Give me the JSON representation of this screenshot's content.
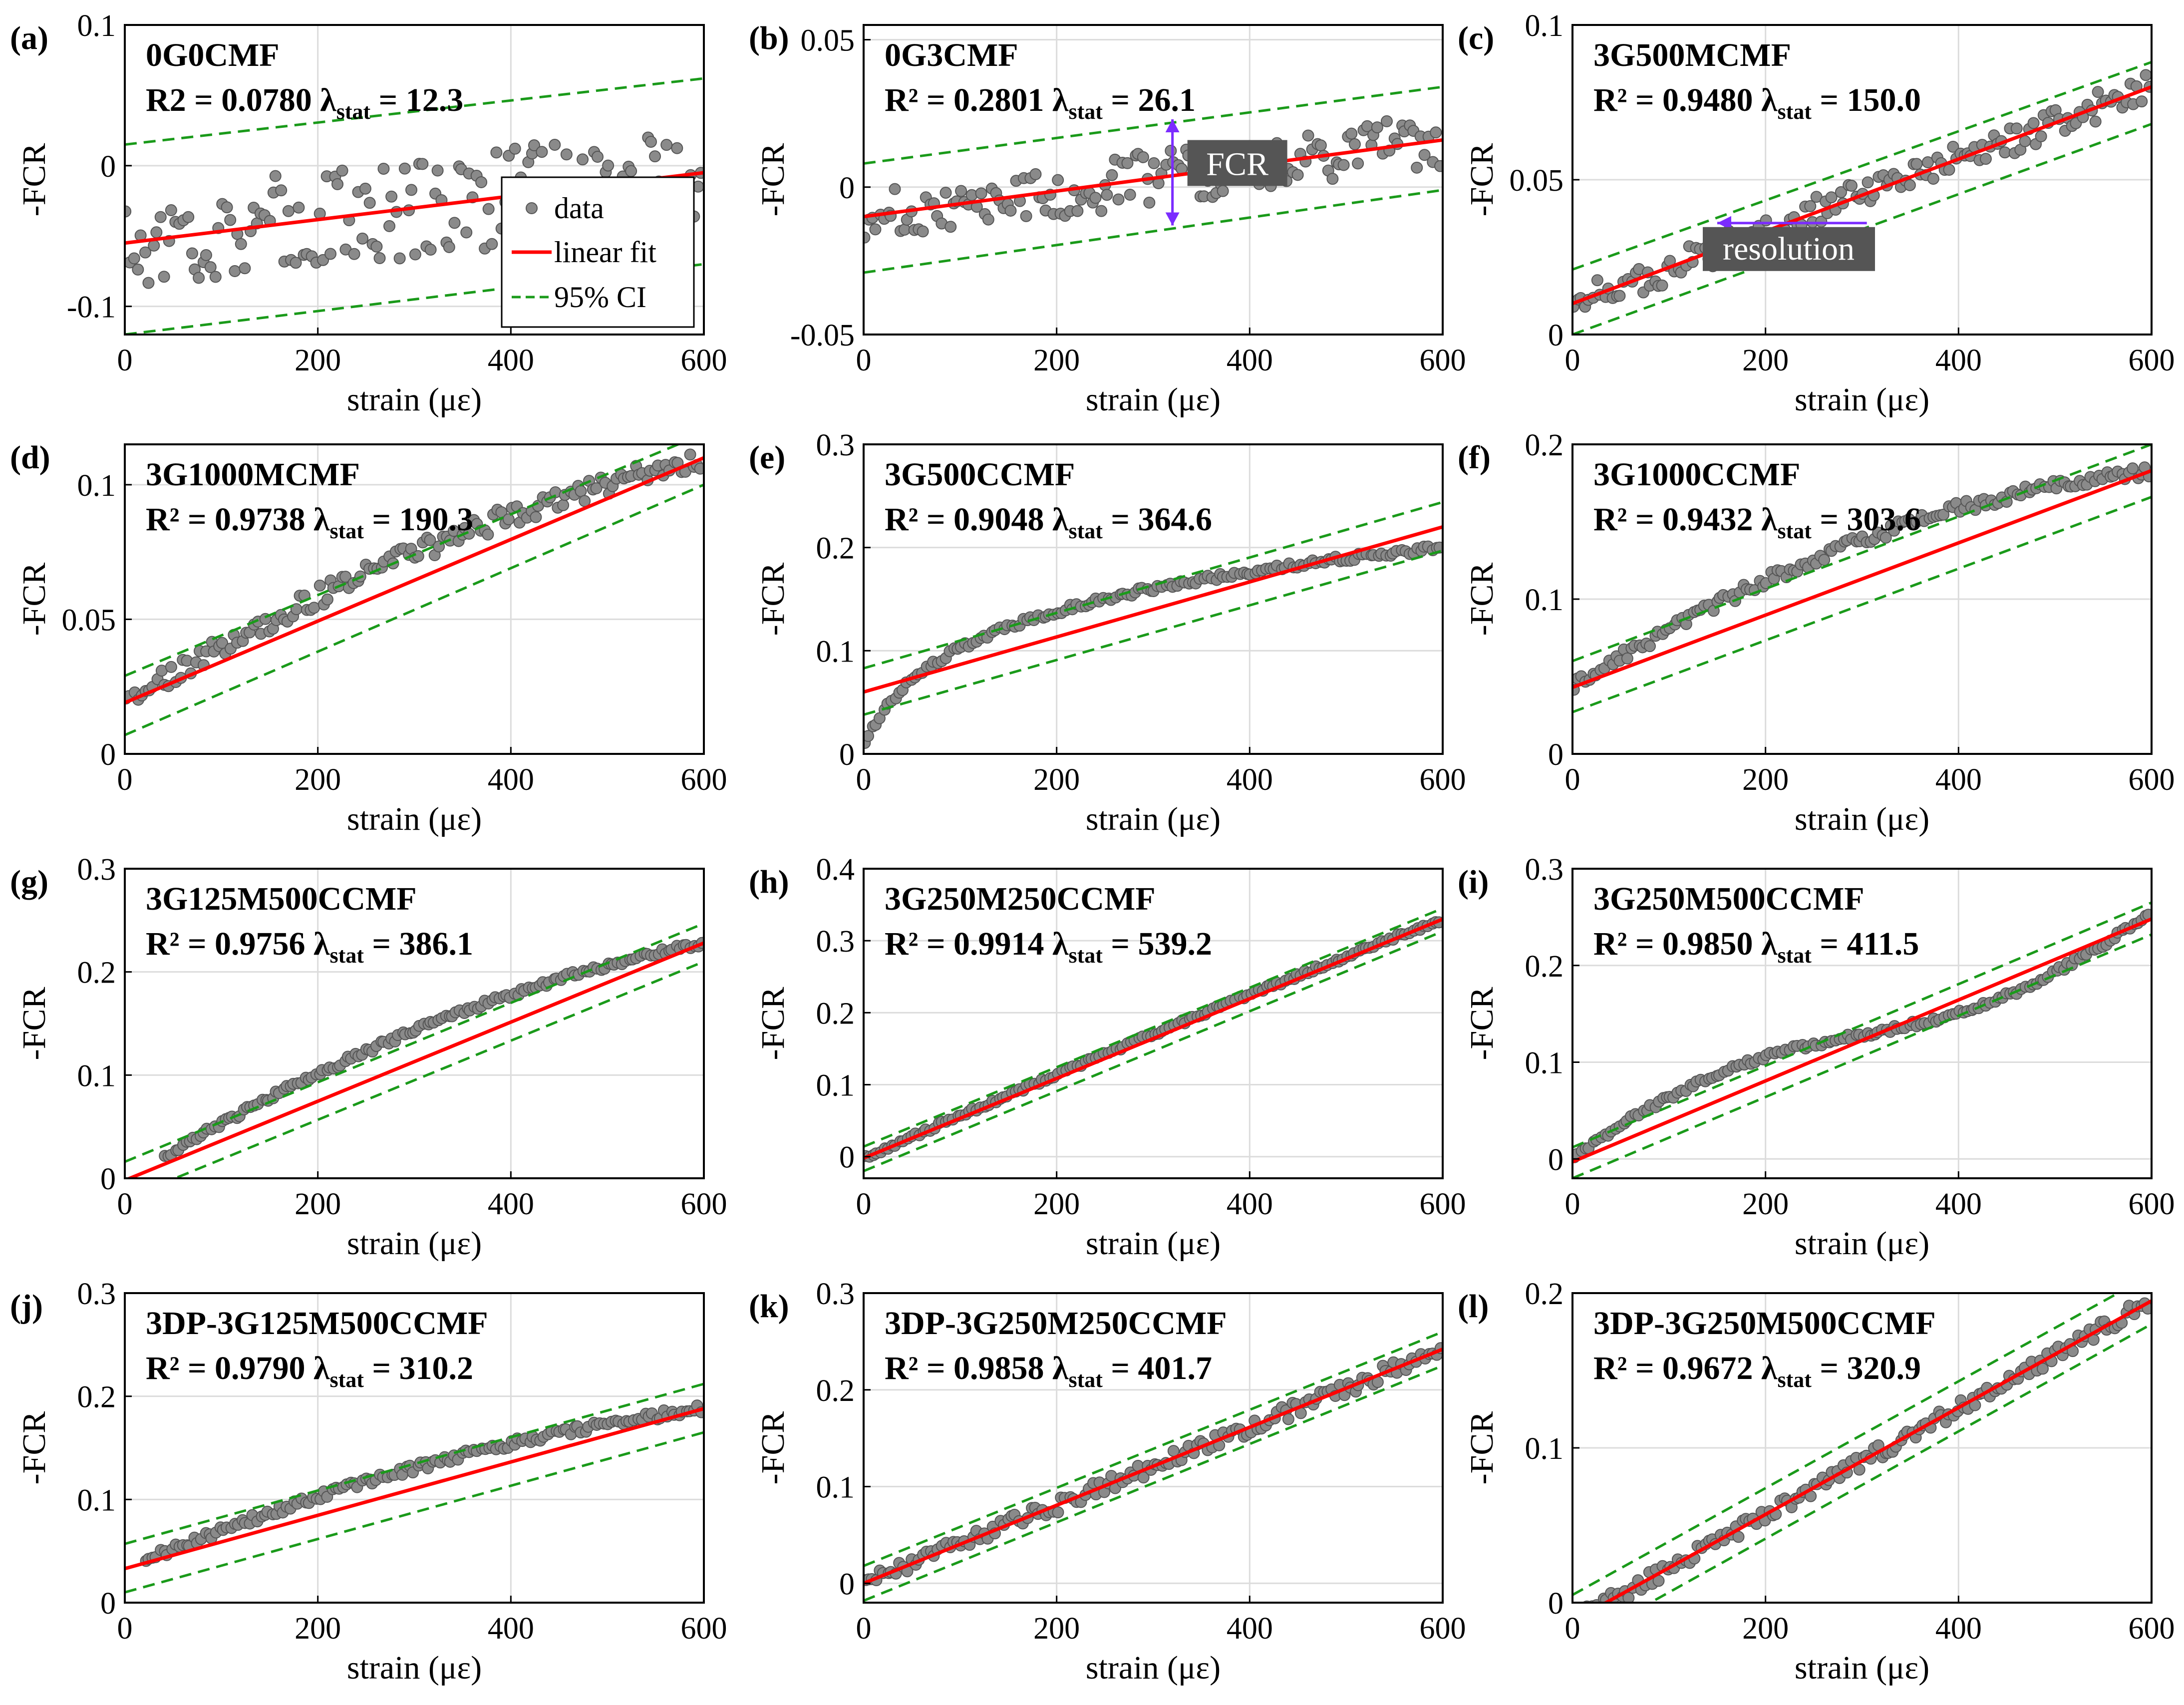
{
  "figure": {
    "xlabel": "strain (με)",
    "ylabel": "-FCR",
    "legend": {
      "data": "data",
      "fit": "linear fit",
      "ci": "95% CI"
    },
    "annotations": {
      "fcr": "FCR",
      "resolution": "resolution"
    },
    "colors": {
      "data": "#8a8a8a",
      "fit": "#ff0000",
      "ci": "#1a9a1a",
      "arrow": "#7b2cff",
      "labelbox": "#555555"
    }
  },
  "chart_data": [
    {
      "type": "scatter",
      "label": "(a)",
      "title": "0G0CMF",
      "r2_label": "R2",
      "r2": "0.0780",
      "lambda": "12.3",
      "xlim": [
        0,
        600
      ],
      "ylim": [
        -0.12,
        0.1
      ],
      "yticks": [
        -0.1,
        0,
        0.1
      ],
      "ytick_labels": [
        "-0.1",
        "0",
        "0.1"
      ],
      "xticks": [
        0,
        200,
        400,
        600
      ],
      "fit": [
        -0.055,
        -0.005
      ],
      "ci_low": [
        -0.12,
        -0.07
      ],
      "ci_high": [
        0.015,
        0.062
      ],
      "noise": 0.035,
      "legend": true
    },
    {
      "type": "scatter",
      "label": "(b)",
      "title": "0G3CMF",
      "r2_label": "R²",
      "r2": "0.2801",
      "lambda": "26.1",
      "xlim": [
        0,
        600
      ],
      "ylim": [
        -0.05,
        0.055
      ],
      "yticks": [
        -0.05,
        0,
        0.05
      ],
      "ytick_labels": [
        "-0.05",
        "0",
        "0.05"
      ],
      "xticks": [
        0,
        200,
        400,
        600
      ],
      "fit": [
        -0.01,
        0.016
      ],
      "ci_low": [
        -0.029,
        -0.001
      ],
      "ci_high": [
        0.008,
        0.034
      ],
      "noise": 0.009,
      "fcr_arrow": true
    },
    {
      "type": "scatter",
      "label": "(c)",
      "title": "3G500MCMF",
      "r2_label": "R²",
      "r2": "0.9480",
      "lambda": "150.0",
      "xlim": [
        0,
        600
      ],
      "ylim": [
        0,
        0.1
      ],
      "yticks": [
        0,
        0.05,
        0.1
      ],
      "ytick_labels": [
        "0",
        "0.05",
        "0.1"
      ],
      "xticks": [
        0,
        200,
        400,
        600
      ],
      "fit": [
        0.01,
        0.08
      ],
      "ci_low": [
        0,
        0.068
      ],
      "ci_high": [
        0.021,
        0.088
      ],
      "noise": 0.005,
      "res_arrow": true
    },
    {
      "type": "scatter",
      "label": "(d)",
      "title": "3G1000MCMF",
      "r2_label": "R²",
      "r2": "0.9738",
      "lambda": "190.3",
      "xlim": [
        0,
        600
      ],
      "ylim": [
        0,
        0.115
      ],
      "yticks": [
        0,
        0.05,
        0.1
      ],
      "ytick_labels": [
        "0",
        "0.05",
        "0.1"
      ],
      "xticks": [
        0,
        200,
        400,
        600
      ],
      "fit": [
        0.019,
        0.11
      ],
      "ci_low": [
        0.007,
        0.1
      ],
      "ci_high": [
        0.029,
        0.119
      ],
      "noise": 0.004,
      "curve": -0.01
    },
    {
      "type": "scatter",
      "label": "(e)",
      "title": "3G500CCMF",
      "r2_label": "R²",
      "r2": "0.9048",
      "lambda": "364.6",
      "xlim": [
        0,
        600
      ],
      "ylim": [
        0,
        0.3
      ],
      "yticks": [
        0,
        0.1,
        0.2,
        0.3
      ],
      "ytick_labels": [
        "0",
        "0.1",
        "0.2",
        "0.3"
      ],
      "xticks": [
        0,
        200,
        400,
        600
      ],
      "fit": [
        0.06,
        0.22
      ],
      "ci_low": [
        0.038,
        0.197
      ],
      "ci_high": [
        0.083,
        0.244
      ],
      "noise": 0.003,
      "shape": "log",
      "y0": 0.005,
      "y1": 0.2
    },
    {
      "type": "scatter",
      "label": "(f)",
      "title": "3G1000CCMF",
      "r2_label": "R²",
      "r2": "0.9432",
      "lambda": "303.6",
      "xlim": [
        0,
        600
      ],
      "ylim": [
        0,
        0.2
      ],
      "yticks": [
        0,
        0.1,
        0.2
      ],
      "ytick_labels": [
        "0",
        "0.1",
        "0.2"
      ],
      "xticks": [
        0,
        200,
        400,
        600
      ],
      "fit": [
        0.043,
        0.183
      ],
      "ci_low": [
        0.027,
        0.166
      ],
      "ci_high": [
        0.06,
        0.2
      ],
      "noise": 0.004,
      "curve": -0.025
    },
    {
      "type": "scatter",
      "label": "(g)",
      "title": "3G125M500CCMF",
      "r2_label": "R²",
      "r2": "0.9756",
      "lambda": "386.1",
      "xlim": [
        0,
        600
      ],
      "ylim": [
        0,
        0.3
      ],
      "yticks": [
        0,
        0.1,
        0.2,
        0.3
      ],
      "ytick_labels": [
        "0",
        "0.1",
        "0.2",
        "0.3"
      ],
      "xticks": [
        0,
        200,
        400,
        600
      ],
      "fit": [
        -0.002,
        0.228
      ],
      "ci_low": [
        -0.02,
        0.21
      ],
      "ci_high": [
        0.016,
        0.247
      ],
      "noise": 0.003,
      "xstart": 40,
      "curve": -0.03
    },
    {
      "type": "scatter",
      "label": "(h)",
      "title": "3G250M250CCMF",
      "r2_label": "R²",
      "r2": "0.9914",
      "lambda": "539.2",
      "xlim": [
        0,
        600
      ],
      "ylim": [
        -0.03,
        0.4
      ],
      "yticks": [
        0,
        0.1,
        0.2,
        0.3,
        0.4
      ],
      "ytick_labels": [
        "0",
        "0.1",
        "0.2",
        "0.3",
        "0.4"
      ],
      "xticks": [
        0,
        200,
        400,
        600
      ],
      "fit": [
        -0.002,
        0.33
      ],
      "ci_low": [
        -0.02,
        0.313
      ],
      "ci_high": [
        0.014,
        0.345
      ],
      "noise": 0.003,
      "curve": -0.006
    },
    {
      "type": "scatter",
      "label": "(i)",
      "title": "3G250M500CCMF",
      "r2_label": "R²",
      "r2": "0.9850",
      "lambda": "411.5",
      "xlim": [
        0,
        600
      ],
      "ylim": [
        -0.02,
        0.3
      ],
      "yticks": [
        0,
        0.1,
        0.2,
        0.3
      ],
      "ytick_labels": [
        "0",
        "0.1",
        "0.2",
        "0.3"
      ],
      "xticks": [
        0,
        200,
        400,
        600
      ],
      "fit": [
        -0.003,
        0.248
      ],
      "ci_low": [
        -0.02,
        0.232
      ],
      "ci_high": [
        0.012,
        0.265
      ],
      "noise": 0.003,
      "shape": "s"
    },
    {
      "type": "scatter",
      "label": "(j)",
      "title": "3DP-3G125M500CCMF",
      "r2_label": "R²",
      "r2": "0.9790",
      "lambda": "310.2",
      "xlim": [
        0,
        600
      ],
      "ylim": [
        0,
        0.3
      ],
      "yticks": [
        0,
        0.1,
        0.2,
        0.3
      ],
      "ytick_labels": [
        "0",
        "0.1",
        "0.2",
        "0.3"
      ],
      "xticks": [
        0,
        200,
        400,
        600
      ],
      "fit": [
        0.033,
        0.188
      ],
      "ci_low": [
        0.01,
        0.165
      ],
      "ci_high": [
        0.057,
        0.212
      ],
      "noise": 0.004,
      "xstart": 20,
      "curve": -0.02
    },
    {
      "type": "scatter",
      "label": "(k)",
      "title": "3DP-3G250M250CCMF",
      "r2_label": "R²",
      "r2": "0.9858",
      "lambda": "401.7",
      "xlim": [
        0,
        600
      ],
      "ylim": [
        -0.02,
        0.3
      ],
      "yticks": [
        0,
        0.1,
        0.2,
        0.3
      ],
      "ytick_labels": [
        "0",
        "0.1",
        "0.2",
        "0.3"
      ],
      "xticks": [
        0,
        200,
        400,
        600
      ],
      "fit": [
        0.0,
        0.242
      ],
      "ci_low": [
        -0.018,
        0.225
      ],
      "ci_high": [
        0.018,
        0.26
      ],
      "noise": 0.008
    },
    {
      "type": "scatter",
      "label": "(l)",
      "title": "3DP-3G250M500CCMF",
      "r2_label": "R²",
      "r2": "0.9672",
      "lambda": "320.9",
      "xlim": [
        0,
        600
      ],
      "ylim": [
        0,
        0.2
      ],
      "yticks": [
        0,
        0.1,
        0.2
      ],
      "ytick_labels": [
        "0",
        "0.1",
        "0.2"
      ],
      "xticks": [
        0,
        200,
        400,
        600
      ],
      "fit": [
        -0.012,
        0.195
      ],
      "ci_low": [
        -0.028,
        0.18
      ],
      "ci_high": [
        0.005,
        0.212
      ],
      "noise": 0.005,
      "xstart": 15
    }
  ]
}
